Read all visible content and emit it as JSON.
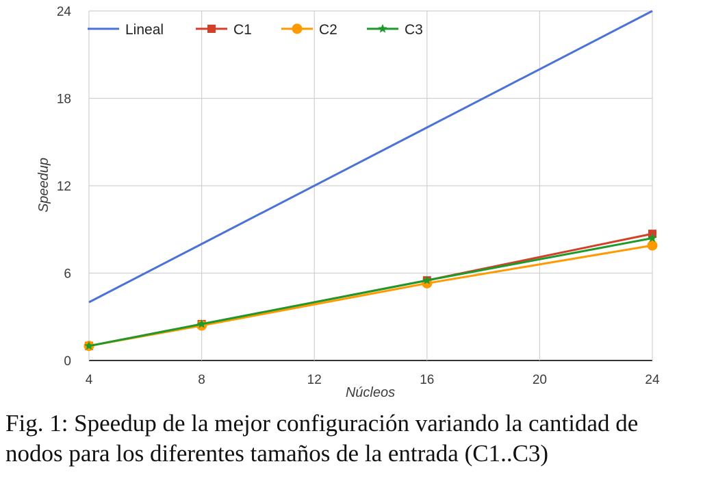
{
  "chart_data": {
    "type": "line",
    "xlabel": "Núcleos",
    "ylabel": "Speedup",
    "xlim": [
      4,
      24
    ],
    "ylim": [
      0,
      24
    ],
    "x_ticks": [
      "4",
      "8",
      "12",
      "16",
      "20",
      "24"
    ],
    "y_ticks": [
      "0",
      "6",
      "12",
      "18",
      "24"
    ],
    "grid": true,
    "legend_position": "top-left",
    "x": [
      4,
      8,
      16,
      24
    ],
    "series": [
      {
        "name": "Lineal",
        "color": "#4a72d8",
        "marker": "none",
        "values": [
          4,
          8,
          16,
          24
        ]
      },
      {
        "name": "C1",
        "color": "#d2402a",
        "marker": "square",
        "values": [
          1,
          2.5,
          5.5,
          8.7
        ]
      },
      {
        "name": "C2",
        "color": "#ff9900",
        "marker": "circle",
        "values": [
          1,
          2.4,
          5.3,
          7.9
        ]
      },
      {
        "name": "C3",
        "color": "#1e9a2a",
        "marker": "star",
        "values": [
          1,
          2.5,
          5.5,
          8.4
        ]
      }
    ]
  },
  "caption": {
    "text": "Fig. 1: Speedup de la mejor configuración variando la cantidad de nodos para los diferentes tamaños de la entrada (C1..C3)"
  }
}
